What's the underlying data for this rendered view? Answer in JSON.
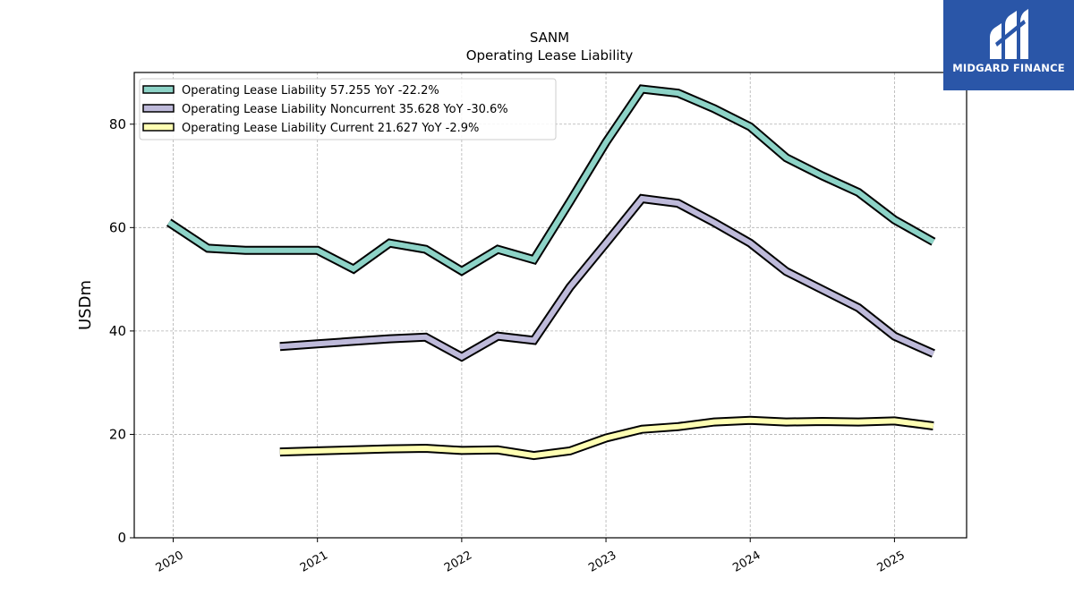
{
  "brand": {
    "name": "MIDGARD FINANCE",
    "bg_color": "#2a56a8",
    "icon": "midgard-logo-icon"
  },
  "chart_data": {
    "type": "line",
    "title": "SANM",
    "subtitle": "Operating Lease Liability",
    "ylabel": "USDm",
    "xlabel": "",
    "ylim": [
      0,
      90
    ],
    "xlim": [
      2019.73,
      2025.5
    ],
    "yticks": [
      0,
      20,
      40,
      60,
      80
    ],
    "xticks": [
      2020,
      2021,
      2022,
      2023,
      2024,
      2025
    ],
    "xtick_labels": [
      "2020",
      "2021",
      "2022",
      "2023",
      "2024",
      "2025"
    ],
    "grid": true,
    "legend_position": "top-left",
    "series": [
      {
        "name": "Operating Lease Liability",
        "legend_label": "Operating Lease Liability  57.255 YoY -22.2%",
        "color": "#8dd3c7",
        "x": [
          2019.97,
          2020.24,
          2020.5,
          2020.75,
          2021.0,
          2021.25,
          2021.5,
          2021.75,
          2022.0,
          2022.25,
          2022.5,
          2022.75,
          2023.0,
          2023.25,
          2023.5,
          2023.75,
          2024.0,
          2024.25,
          2024.5,
          2024.75,
          2025.0,
          2025.27
        ],
        "y": [
          61.0,
          56.0,
          55.6,
          55.6,
          55.6,
          52.0,
          57.0,
          55.8,
          51.6,
          55.8,
          53.8,
          65.0,
          76.5,
          86.8,
          86.0,
          83.0,
          79.5,
          73.5,
          70.0,
          66.8,
          61.5,
          57.255
        ]
      },
      {
        "name": "Operating Lease Liability Noncurrent",
        "legend_label": "Operating Lease Liability Noncurrent  35.628 YoY -30.6%",
        "color": "#bebada",
        "x": [
          2020.74,
          2021.0,
          2021.25,
          2021.5,
          2021.75,
          2022.0,
          2022.25,
          2022.5,
          2022.75,
          2023.0,
          2023.25,
          2023.5,
          2023.75,
          2024.0,
          2024.25,
          2024.5,
          2024.75,
          2025.0,
          2025.27
        ],
        "y": [
          37.0,
          37.5,
          38.0,
          38.5,
          38.8,
          35.0,
          39.0,
          38.2,
          48.5,
          57.0,
          65.6,
          64.7,
          61.0,
          57.0,
          51.5,
          48.0,
          44.5,
          39.0,
          35.628
        ]
      },
      {
        "name": "Operating Lease Liability Current",
        "legend_label": "Operating Lease Liability Current  21.627 YoY -2.9%",
        "color": "#ffffb3",
        "x": [
          2020.74,
          2021.0,
          2021.25,
          2021.5,
          2021.75,
          2022.0,
          2022.25,
          2022.5,
          2022.75,
          2023.0,
          2023.25,
          2023.5,
          2023.75,
          2024.0,
          2024.25,
          2024.5,
          2024.75,
          2025.0,
          2025.27
        ],
        "y": [
          16.6,
          16.8,
          17.0,
          17.2,
          17.3,
          16.9,
          17.0,
          15.9,
          16.8,
          19.3,
          21.0,
          21.5,
          22.4,
          22.7,
          22.4,
          22.5,
          22.4,
          22.6,
          21.627
        ]
      }
    ]
  }
}
